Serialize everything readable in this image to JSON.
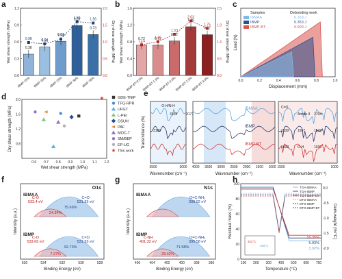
{
  "chart_data": [
    {
      "panel": "a",
      "type": "bar",
      "ylabel": "Wet shear strength (MPa)",
      "ylabel_right": "Dry shear strength (MPa)",
      "categories": [
        "IBMP-15%",
        "IBMP-20%",
        "IBMP-25%",
        "IBMP-30%",
        "IBMP-35%"
      ],
      "series": [
        {
          "values": [
            0.38,
            0.51,
            0.61,
            0.89,
            0.73
          ]
        },
        {
          "values": [
            0.98,
            0.94,
            1.08,
            1.6,
            1.56
          ]
        }
      ],
      "ylim": [
        0,
        1.2
      ],
      "ylim_right": [
        0,
        2.0
      ],
      "colors": [
        "#8fb3d9",
        "#9bbfe0",
        "#6f9ccc",
        "#2f5f9a",
        "#3a6fa8"
      ]
    },
    {
      "panel": "b",
      "type": "bar",
      "ylabel": "Wet shear strength (MPa)",
      "ylabel_right": "Dry shear strength (MPa)",
      "categories": [
        "IBMP-BT-0.5%",
        "IBMP-BT-1.5%",
        "IBMP-BT-2.0%",
        "IBMP-BT-2.5%",
        "IBMP-BT-3.0%"
      ],
      "series": [
        {
          "values": [
            0.72,
            0.72,
            0.82,
            1.16,
            0.97
          ]
        },
        {
          "values": [
            1.14,
            1.26,
            1.53,
            2.03,
            1.75
          ]
        }
      ],
      "ylim": [
        0,
        1.6
      ],
      "ylim_right": [
        0,
        2.5
      ],
      "colors": [
        "#e3a5a5",
        "#d98c8c",
        "#c96b6b",
        "#a33a3a",
        "#8c1f1f"
      ]
    },
    {
      "panel": "c",
      "type": "area",
      "xlabel": "Displacement (mm)",
      "ylabel": "Load (N)",
      "x_ticks": [
        "0.0",
        "0.2",
        "0.4",
        "0.6",
        "0.8",
        "1.0"
      ],
      "legend_title_left": "Samples",
      "legend_title_right": "Debonding work",
      "series": [
        {
          "name": "IBMAA",
          "value": "0.169 J",
          "color": "#7fb8e6"
        },
        {
          "name": "IBMP",
          "value": "0.353 J",
          "color": "#2e4f8a"
        },
        {
          "name": "IBMP-BT",
          "value": "0.600 J",
          "color": "#d9534f"
        }
      ]
    },
    {
      "panel": "d",
      "type": "scatter",
      "xlabel": "Wet shear strength (MPa)",
      "ylabel": "Dry shear strength (MPa)",
      "xlim": [
        0.5,
        1.2
      ],
      "ylim": [
        0.4,
        2.0
      ],
      "x_ticks": [
        "0.6",
        "0.7",
        "0.8",
        "0.9",
        "1.0",
        "1.1",
        "1.2"
      ],
      "y_ticks": [
        "0.8",
        "1.2",
        "1.6",
        "2.0"
      ],
      "points": [
        {
          "name": "GDE-TNIP",
          "x": 0.97,
          "y": 1.55,
          "color": "#333333",
          "marker": "square"
        },
        {
          "name": "TFG-RPR",
          "x": 0.82,
          "y": 1.62,
          "color": "#4a90d9",
          "marker": "circle"
        },
        {
          "name": "UFGT",
          "x": 0.76,
          "y": 0.72,
          "color": "#5ab0e6",
          "marker": "triangle"
        },
        {
          "name": "L-PEI",
          "x": 0.68,
          "y": 1.45,
          "color": "#7ec87e",
          "marker": "triangle"
        },
        {
          "name": "OSUH",
          "x": 0.91,
          "y": 1.52,
          "color": "#2c4a9a",
          "marker": "diamond"
        },
        {
          "name": "PAF",
          "x": 0.7,
          "y": 1.66,
          "color": "#e08a3c",
          "marker": "triangle-left"
        },
        {
          "name": "MOC-7",
          "x": 0.8,
          "y": 1.38,
          "color": "#9a6fc0",
          "marker": "triangle"
        },
        {
          "name": "SM/BEP",
          "x": 0.61,
          "y": 1.66,
          "color": "#8a7ac9",
          "marker": "circle"
        },
        {
          "name": "EP-UG",
          "x": 0.85,
          "y": 1.28,
          "color": "#b0b0b0",
          "marker": "circle"
        },
        {
          "name": "This work",
          "x": 1.16,
          "y": 2.03,
          "color": "#e02020",
          "marker": "star"
        }
      ]
    },
    {
      "panel": "e",
      "type": "line",
      "xlabel": "Wavenumber (cm⁻¹)",
      "ylabel": "Transmittance (%)",
      "sub_panels": [
        {
          "x_ticks": [
            "3500",
            "3000"
          ],
          "annotations": [
            "O-H/N-H",
            "3168",
            "3171",
            "3189"
          ]
        },
        {
          "x_ticks": [
            "4000",
            "3500",
            "3000",
            "2500",
            "2000",
            "1500",
            "1000"
          ]
        },
        {
          "x_ticks": [
            "1500",
            "1000"
          ],
          "annotations": [
            "C=O",
            "Amide II",
            "1794",
            "1539",
            "1697",
            "1549",
            "1693",
            "O-H",
            "1030"
          ]
        }
      ],
      "series": [
        {
          "name": "IBMAA",
          "color": "#5aa6e0"
        },
        {
          "name": "IBMP",
          "color": "#2c3e6a"
        },
        {
          "name": "IBMP-BT",
          "color": "#d03a3a"
        }
      ]
    },
    {
      "panel": "f",
      "type": "line",
      "title": "O1s",
      "xlabel": "Binding Energy (eV)",
      "ylabel": "Intensity (a.u.)",
      "x_ticks": [
        "536",
        "534",
        "532",
        "530",
        "528"
      ],
      "upper": {
        "sample": "IBMAA",
        "peaks": [
          {
            "label": "C-O",
            "energy": "533.4 eV",
            "pct": "24.34%"
          },
          {
            "label": "C=O",
            "energy": "531.93 eV",
            "pct": "75.66%"
          }
        ]
      },
      "lower": {
        "sample": "IBMP",
        "peaks": [
          {
            "label": "C-O",
            "energy": "533.69 eV",
            "pct": "7.27%"
          },
          {
            "label": "C=O",
            "energy": "531.93 eV",
            "pct": "92.73%"
          }
        ]
      }
    },
    {
      "panel": "g",
      "type": "line",
      "title": "N1s",
      "xlabel": "Binding Energy (eV)",
      "ylabel": "Intensity (a.u.)",
      "x_ticks": [
        "406",
        "404",
        "402",
        "400",
        "398",
        "396"
      ],
      "upper": {
        "sample": "IBMAA",
        "peaks": [
          {
            "label": "O=C-NH₂",
            "energy": "399.92 eV",
            "pct": ""
          }
        ]
      },
      "lower": {
        "sample": "IBMP",
        "peaks": [
          {
            "label": "C-NH",
            "energy": "401.32 eV",
            "pct": "28.42%"
          },
          {
            "label": "O=C-NH₂",
            "energy": "399.58 eV",
            "pct": "71.58%"
          }
        ]
      }
    },
    {
      "panel": "h",
      "type": "line",
      "xlabel": "Temperature (°C)",
      "ylabel": "Residual mass (%)",
      "ylabel_right": "Deriv.weight (%/°C)",
      "x_ticks": [
        "100",
        "200",
        "300",
        "400",
        "500",
        "600",
        "700"
      ],
      "y_ticks": [
        "0",
        "20",
        "40",
        "60",
        "80",
        "100"
      ],
      "y_ticks_right": [
        "0.0",
        "-0.5",
        "-1.0",
        "-1.5",
        "-2.0"
      ],
      "residues": [
        "15.35%",
        "5.93%",
        "3.92%"
      ],
      "inset_labels": [
        "402°C",
        "405°C"
      ],
      "legend": [
        {
          "name": "TGA-IBMAA",
          "color": "#7fb8e6",
          "dash": false
        },
        {
          "name": "TGA-IBMP",
          "color": "#2c3e6a",
          "dash": false
        },
        {
          "name": "TGA-IBMP-BT",
          "color": "#d03a3a",
          "dash": false
        },
        {
          "name": "DTG-IBMAA",
          "color": "#7fb8e6",
          "dash": true
        },
        {
          "name": "DTG-IBMP",
          "color": "#2c3e6a",
          "dash": true
        },
        {
          "name": "DTG-IBMP-BT",
          "color": "#d03a3a",
          "dash": true
        }
      ]
    }
  ]
}
